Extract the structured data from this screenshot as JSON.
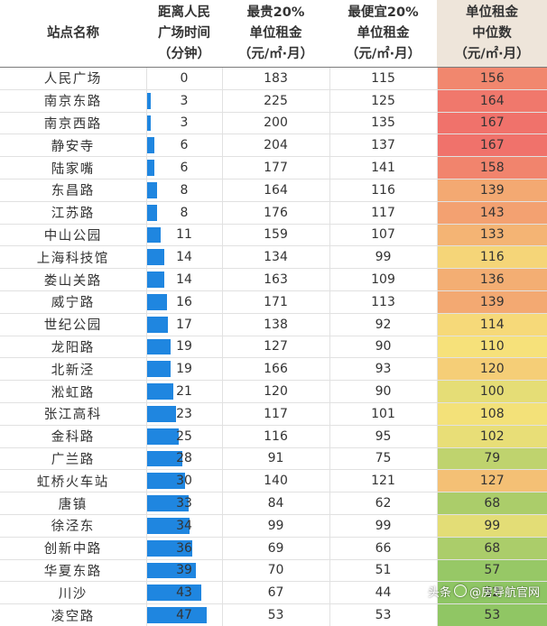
{
  "headers": {
    "station": [
      "站点名称"
    ],
    "distance": [
      "距离人民",
      "广场时间",
      "（分钟）"
    ],
    "top20": [
      "最贵20%",
      "单位租金",
      "（元/㎡·月）"
    ],
    "bottom20": [
      "最便宜20%",
      "单位租金",
      "（元/㎡·月）"
    ],
    "median": [
      "单位租金",
      "中位数",
      "（元/㎡·月）"
    ]
  },
  "bar_color": "#1f86e0",
  "heat_colors": {
    "low": "#8ec564",
    "mid": "#f6e27a",
    "high": "#f0726b"
  },
  "rows": [
    {
      "station": "人民广场",
      "minutes": 0,
      "top": 183,
      "bottom": 115,
      "median": 156
    },
    {
      "station": "南京东路",
      "minutes": 3,
      "top": 225,
      "bottom": 125,
      "median": 164
    },
    {
      "station": "南京西路",
      "minutes": 3,
      "top": 200,
      "bottom": 135,
      "median": 167
    },
    {
      "station": "静安寺",
      "minutes": 6,
      "top": 204,
      "bottom": 137,
      "median": 167
    },
    {
      "station": "陆家嘴",
      "minutes": 6,
      "top": 177,
      "bottom": 141,
      "median": 158
    },
    {
      "station": "东昌路",
      "minutes": 8,
      "top": 164,
      "bottom": 116,
      "median": 139
    },
    {
      "station": "江苏路",
      "minutes": 8,
      "top": 176,
      "bottom": 117,
      "median": 143
    },
    {
      "station": "中山公园",
      "minutes": 11,
      "top": 159,
      "bottom": 107,
      "median": 133
    },
    {
      "station": "上海科技馆",
      "minutes": 14,
      "top": 134,
      "bottom": 99,
      "median": 116
    },
    {
      "station": "娄山关路",
      "minutes": 14,
      "top": 163,
      "bottom": 109,
      "median": 136
    },
    {
      "station": "威宁路",
      "minutes": 16,
      "top": 171,
      "bottom": 113,
      "median": 139
    },
    {
      "station": "世纪公园",
      "minutes": 17,
      "top": 138,
      "bottom": 92,
      "median": 114
    },
    {
      "station": "龙阳路",
      "minutes": 19,
      "top": 127,
      "bottom": 90,
      "median": 110
    },
    {
      "station": "北新泾",
      "minutes": 19,
      "top": 166,
      "bottom": 93,
      "median": 120
    },
    {
      "station": "淞虹路",
      "minutes": 21,
      "top": 120,
      "bottom": 90,
      "median": 100
    },
    {
      "station": "张江高科",
      "minutes": 23,
      "top": 117,
      "bottom": 101,
      "median": 108
    },
    {
      "station": "金科路",
      "minutes": 25,
      "top": 116,
      "bottom": 95,
      "median": 102
    },
    {
      "station": "广兰路",
      "minutes": 28,
      "top": 91,
      "bottom": 75,
      "median": 79
    },
    {
      "station": "虹桥火车站",
      "minutes": 30,
      "top": 140,
      "bottom": 121,
      "median": 127
    },
    {
      "station": "唐镇",
      "minutes": 33,
      "top": 84,
      "bottom": 62,
      "median": 68
    },
    {
      "station": "徐泾东",
      "minutes": 34,
      "top": 99,
      "bottom": 99,
      "median": 99
    },
    {
      "station": "创新中路",
      "minutes": 36,
      "top": 69,
      "bottom": 66,
      "median": 68
    },
    {
      "station": "华夏东路",
      "minutes": 39,
      "top": 70,
      "bottom": 51,
      "median": 57
    },
    {
      "station": "川沙",
      "minutes": 43,
      "top": 67,
      "bottom": 44,
      "median": 52
    },
    {
      "station": "凌空路",
      "minutes": 47,
      "top": 53,
      "bottom": 53,
      "median": 53
    }
  ],
  "watermark": {
    "prefix": "头条",
    "handle": "@房导航官网",
    "icon": "camera-icon"
  }
}
